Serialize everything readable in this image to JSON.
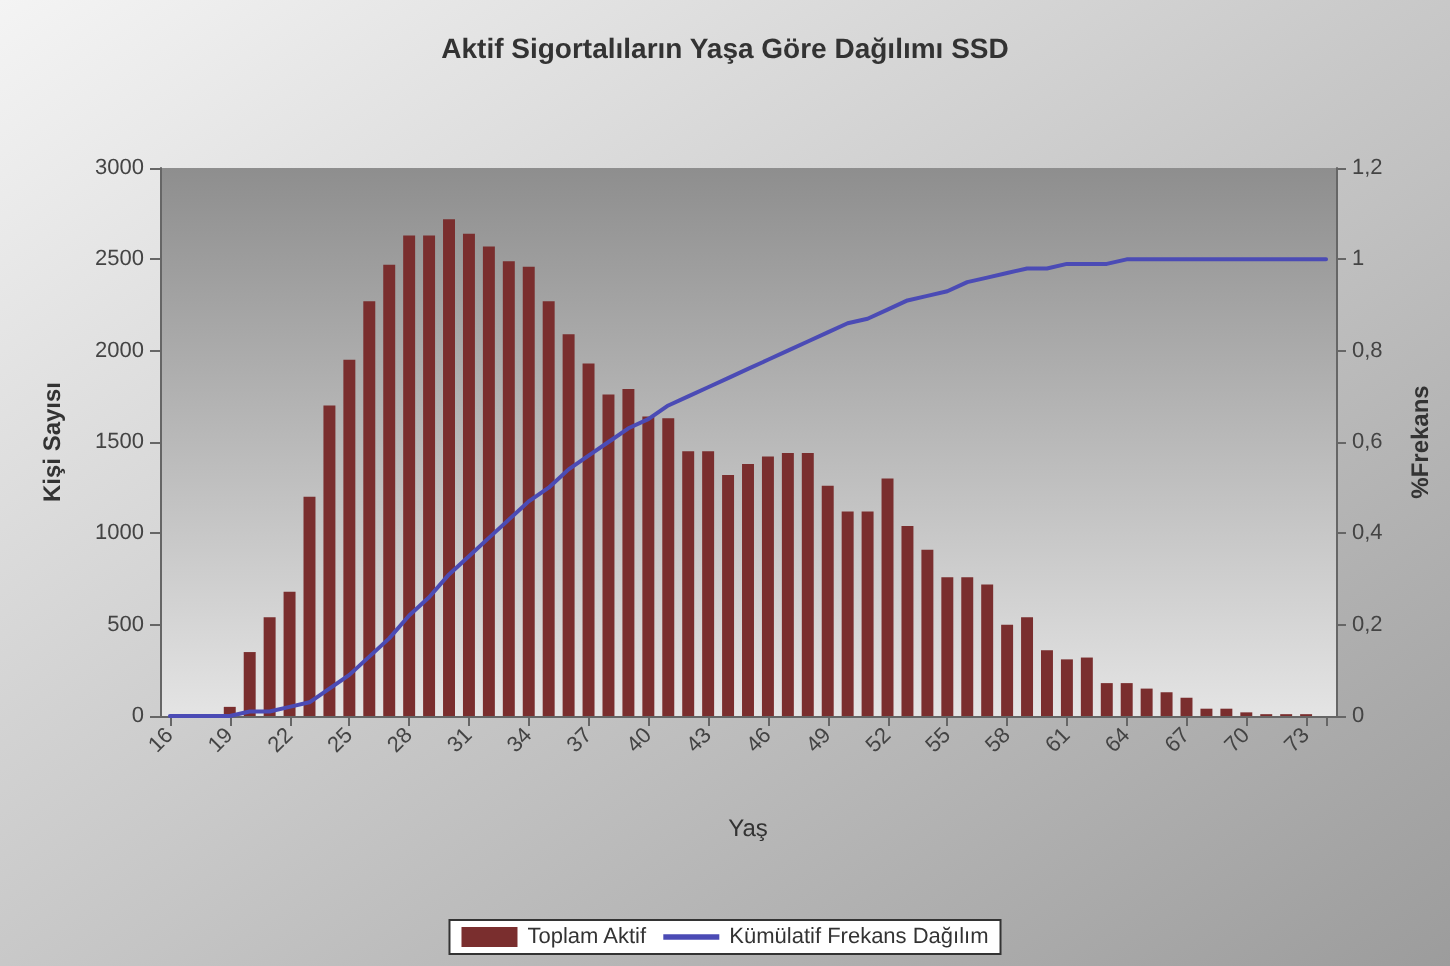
{
  "chart_data": {
    "type": "bar",
    "title": "Aktif Sigortalıların Yaşa Göre Dağılımı SSD",
    "xlabel": "Yaş",
    "ylabel": "Kişi Sayısı",
    "y2label": "%Frekans",
    "categories": [
      "16",
      null,
      null,
      "19",
      null,
      null,
      "22",
      null,
      null,
      "25",
      null,
      null,
      "28",
      null,
      null,
      "31",
      null,
      null,
      "34",
      null,
      null,
      "37",
      null,
      null,
      "40",
      null,
      null,
      "43",
      null,
      null,
      "46",
      null,
      null,
      "49",
      null,
      null,
      "52",
      null,
      null,
      "55",
      null,
      null,
      "58",
      null,
      null,
      "61",
      null,
      null,
      "64",
      null,
      null,
      "67",
      null,
      null,
      "70",
      null,
      null,
      "73",
      null
    ],
    "series": [
      {
        "name": "Toplam Aktif",
        "color": "#7a2e2e",
        "values": [
          0,
          10,
          0,
          50,
          350,
          540,
          680,
          1200,
          1700,
          1950,
          2270,
          2470,
          2630,
          2630,
          2720,
          2640,
          2570,
          2490,
          2460,
          2270,
          2090,
          1930,
          1760,
          1790,
          1640,
          1630,
          1450,
          1450,
          1320,
          1380,
          1420,
          1440,
          1440,
          1260,
          1120,
          1120,
          1300,
          1040,
          910,
          760,
          760,
          720,
          500,
          540,
          360,
          310,
          320,
          180,
          180,
          150,
          130,
          100,
          40,
          40,
          20,
          10,
          10,
          10,
          0
        ]
      },
      {
        "name": "Kümülatif Frekans Dağılım",
        "type": "line",
        "axis": "y2",
        "color": "#4b4bb5",
        "values": [
          0,
          0,
          0,
          0,
          0.01,
          0.01,
          0.02,
          0.03,
          0.06,
          0.09,
          0.13,
          0.17,
          0.22,
          0.26,
          0.31,
          0.35,
          0.39,
          0.43,
          0.47,
          0.5,
          0.54,
          0.57,
          0.6,
          0.63,
          0.65,
          0.68,
          0.7,
          0.72,
          0.74,
          0.76,
          0.78,
          0.8,
          0.82,
          0.84,
          0.86,
          0.87,
          0.89,
          0.91,
          0.92,
          0.93,
          0.95,
          0.96,
          0.97,
          0.98,
          0.98,
          0.99,
          0.99,
          0.99,
          1,
          1,
          1,
          1,
          1,
          1,
          1,
          1,
          1,
          1,
          1
        ]
      }
    ],
    "ylim": [
      0,
      3000
    ],
    "yticks": [
      0,
      500,
      1000,
      1500,
      2000,
      2500,
      3000
    ],
    "y2lim": [
      0,
      1.2
    ],
    "y2ticks": [
      0,
      {
        "value": 0.2,
        "label": "0,2"
      },
      {
        "value": 0.4,
        "label": "0,4"
      },
      {
        "value": 0.6,
        "label": "0,6"
      },
      {
        "value": 0.8,
        "label": "0,8"
      },
      1,
      {
        "value": 1.2,
        "label": "1,2"
      }
    ],
    "grid": false,
    "legend": "bottom",
    "marker": "none",
    "line_style": "solid"
  }
}
